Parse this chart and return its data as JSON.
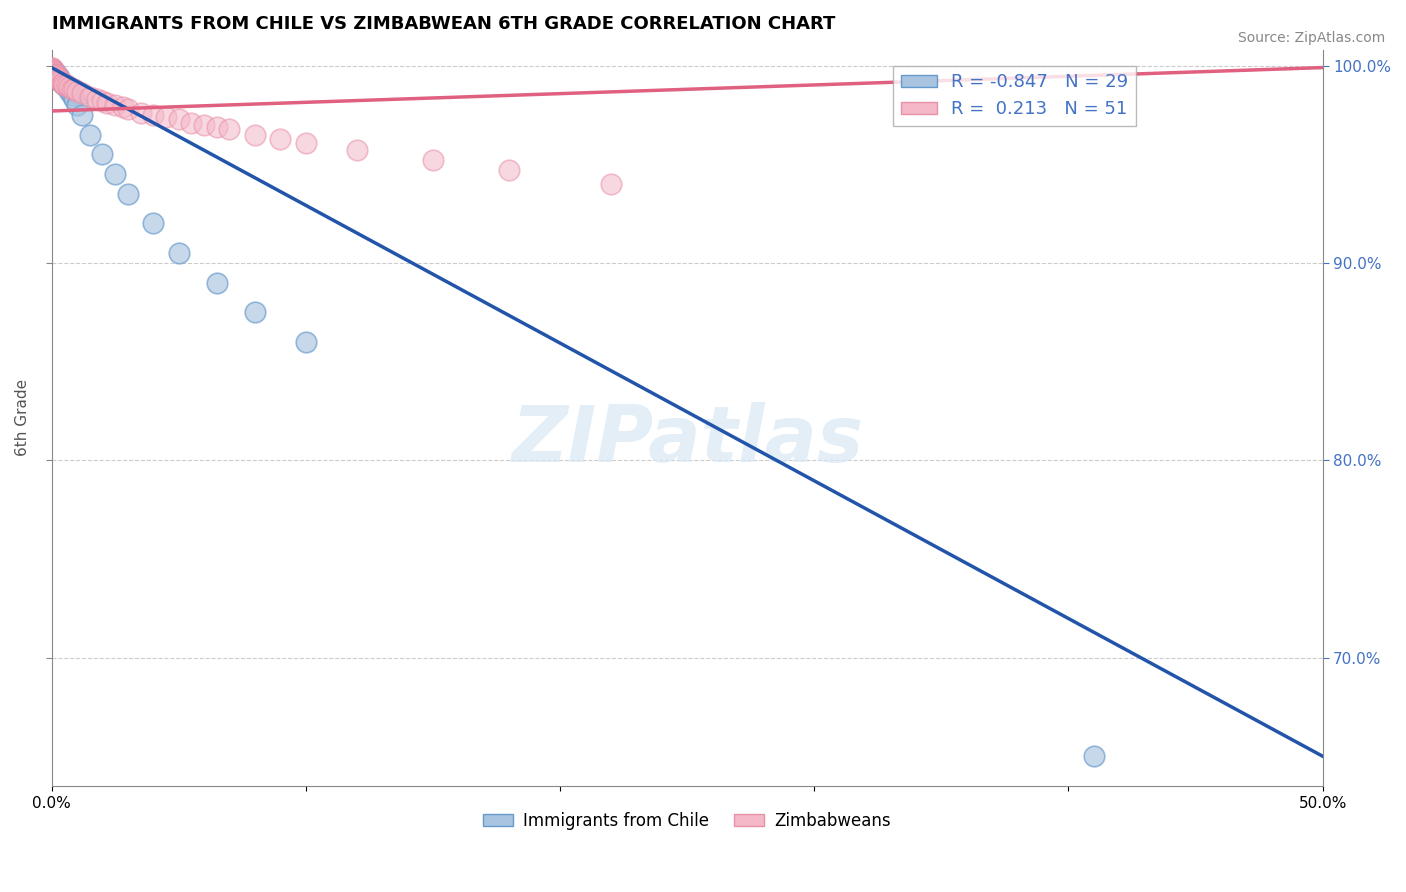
{
  "title": "IMMIGRANTS FROM CHILE VS ZIMBABWEAN 6TH GRADE CORRELATION CHART",
  "source": "Source: ZipAtlas.com",
  "ylabel": "6th Grade",
  "xlim": [
    0.0,
    0.5
  ],
  "ylim": [
    0.635,
    1.008
  ],
  "yticks": [
    1.0,
    0.9,
    0.8,
    0.7
  ],
  "ytick_labels": [
    "100.0%",
    "90.0%",
    "80.0%",
    "70.0%"
  ],
  "xticks": [
    0.0,
    0.1,
    0.2,
    0.3,
    0.4,
    0.5
  ],
  "xtick_labels": [
    "0.0%",
    "",
    "",
    "",
    "",
    "50.0%"
  ],
  "watermark": "ZIPatlas",
  "blue_color": "#a8c4e0",
  "pink_color": "#f4b8c8",
  "blue_edge_color": "#6699cc",
  "pink_edge_color": "#e890a8",
  "blue_line_color": "#2255aa",
  "pink_line_color": "#e06080",
  "chile_scatter_x": [
    0.0003,
    0.0005,
    0.0007,
    0.001,
    0.0012,
    0.0015,
    0.0018,
    0.002,
    0.0025,
    0.003,
    0.0035,
    0.004,
    0.005,
    0.006,
    0.007,
    0.008,
    0.009,
    0.01,
    0.012,
    0.015,
    0.02,
    0.025,
    0.03,
    0.04,
    0.05,
    0.065,
    0.08,
    0.1,
    0.41
  ],
  "chile_scatter_y": [
    0.998,
    0.997,
    0.998,
    0.996,
    0.997,
    0.995,
    0.996,
    0.994,
    0.993,
    0.994,
    0.992,
    0.991,
    0.99,
    0.989,
    0.987,
    0.985,
    0.983,
    0.98,
    0.975,
    0.965,
    0.955,
    0.945,
    0.935,
    0.92,
    0.905,
    0.89,
    0.875,
    0.86,
    0.65
  ],
  "zimb_scatter_x": [
    0.0001,
    0.0002,
    0.0003,
    0.0004,
    0.0005,
    0.0006,
    0.0007,
    0.0008,
    0.0009,
    0.001,
    0.0012,
    0.0014,
    0.0016,
    0.0018,
    0.002,
    0.0022,
    0.0025,
    0.0028,
    0.003,
    0.0035,
    0.004,
    0.0045,
    0.005,
    0.006,
    0.007,
    0.008,
    0.009,
    0.01,
    0.012,
    0.015,
    0.018,
    0.02,
    0.022,
    0.025,
    0.028,
    0.03,
    0.035,
    0.04,
    0.045,
    0.05,
    0.055,
    0.06,
    0.065,
    0.07,
    0.08,
    0.09,
    0.1,
    0.12,
    0.15,
    0.18,
    0.22
  ],
  "zimb_scatter_y": [
    0.999,
    0.999,
    0.998,
    0.998,
    0.997,
    0.998,
    0.997,
    0.997,
    0.996,
    0.997,
    0.996,
    0.996,
    0.995,
    0.995,
    0.995,
    0.994,
    0.994,
    0.993,
    0.993,
    0.992,
    0.991,
    0.991,
    0.99,
    0.99,
    0.989,
    0.988,
    0.988,
    0.987,
    0.986,
    0.984,
    0.983,
    0.982,
    0.981,
    0.98,
    0.979,
    0.978,
    0.976,
    0.975,
    0.974,
    0.973,
    0.971,
    0.97,
    0.969,
    0.968,
    0.965,
    0.963,
    0.961,
    0.957,
    0.952,
    0.947,
    0.94
  ],
  "blue_trendline_x": [
    0.0,
    0.5
  ],
  "blue_trendline_y": [
    0.999,
    0.65
  ],
  "pink_trendline_x": [
    0.0,
    0.5
  ],
  "pink_trendline_y": [
    0.977,
    0.999
  ]
}
